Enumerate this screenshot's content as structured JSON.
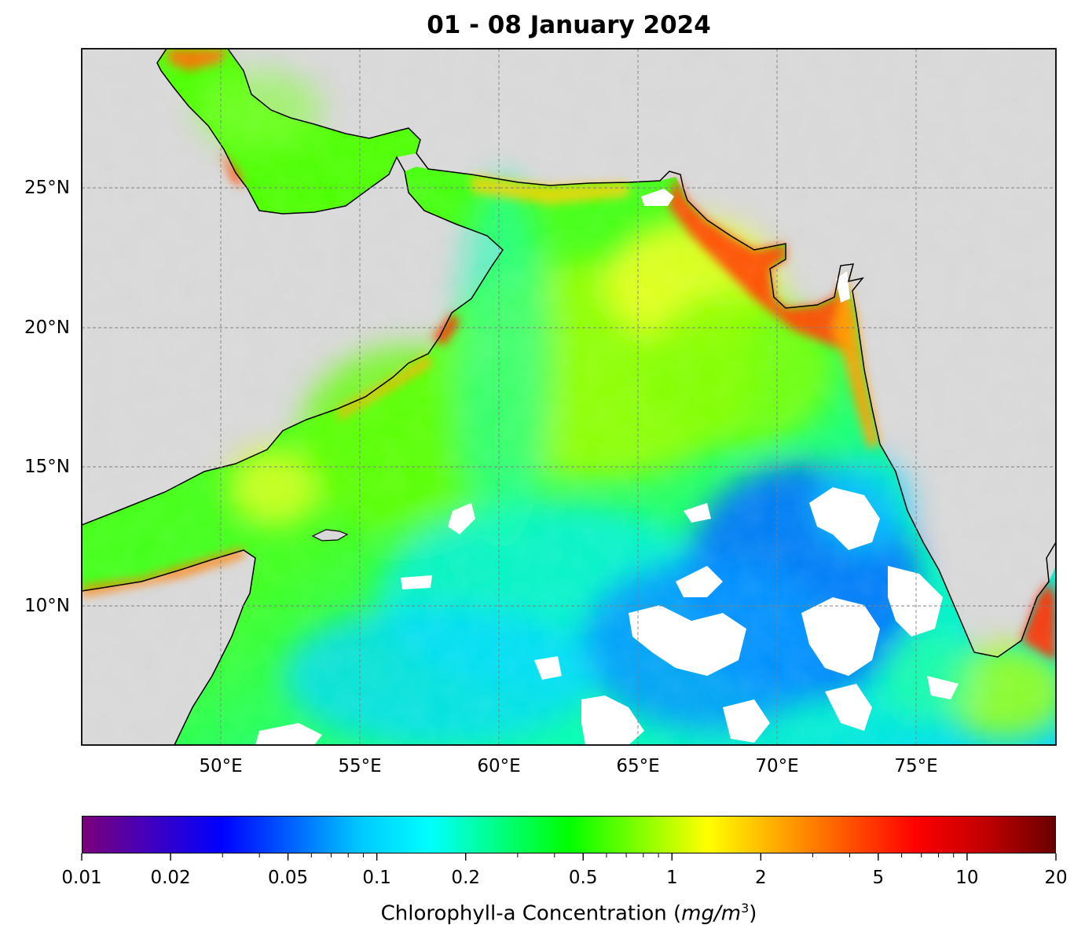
{
  "title": "01 - 08 January 2024",
  "map": {
    "extent": {
      "lon": [
        45,
        80
      ],
      "lat": [
        5,
        30
      ]
    },
    "land_color": "#d8d8d8",
    "gridlines": true,
    "lon_ticks": [
      {
        "value": 50,
        "label": "50°E"
      },
      {
        "value": 55,
        "label": "55°E"
      },
      {
        "value": 60,
        "label": "60°E"
      },
      {
        "value": 65,
        "label": "65°E"
      },
      {
        "value": 70,
        "label": "70°E"
      },
      {
        "value": 75,
        "label": "75°E"
      }
    ],
    "lat_ticks": [
      {
        "value": 25,
        "label": "25°N"
      },
      {
        "value": 20,
        "label": "20°N"
      },
      {
        "value": 15,
        "label": "15°N"
      },
      {
        "value": 10,
        "label": "10°N"
      }
    ]
  },
  "colorbar": {
    "scale": "log",
    "range": [
      0.01,
      20
    ],
    "ticks": [
      {
        "value": 0.01,
        "label": "0.01"
      },
      {
        "value": 0.02,
        "label": "0.02"
      },
      {
        "value": 0.05,
        "label": "0.05"
      },
      {
        "value": 0.1,
        "label": "0.1"
      },
      {
        "value": 0.2,
        "label": "0.2"
      },
      {
        "value": 0.5,
        "label": "0.5"
      },
      {
        "value": 1,
        "label": "1"
      },
      {
        "value": 2,
        "label": "2"
      },
      {
        "value": 5,
        "label": "5"
      },
      {
        "value": 10,
        "label": "10"
      },
      {
        "value": 20,
        "label": "20"
      }
    ],
    "label_prefix": "Chlorophyll-a Concentration (",
    "label_unit_mg": "mg",
    "label_unit_slash": "/",
    "label_unit_m": "m",
    "label_unit_exp": "3",
    "label_suffix": ")",
    "colormap": [
      "#7b0079",
      "#3f00c0",
      "#0000ff",
      "#0060ff",
      "#00c8ff",
      "#00ffff",
      "#00ff80",
      "#00ff00",
      "#80ff00",
      "#ffff00",
      "#ffaa00",
      "#ff5500",
      "#ff0000",
      "#c00000",
      "#6b0000"
    ]
  }
}
